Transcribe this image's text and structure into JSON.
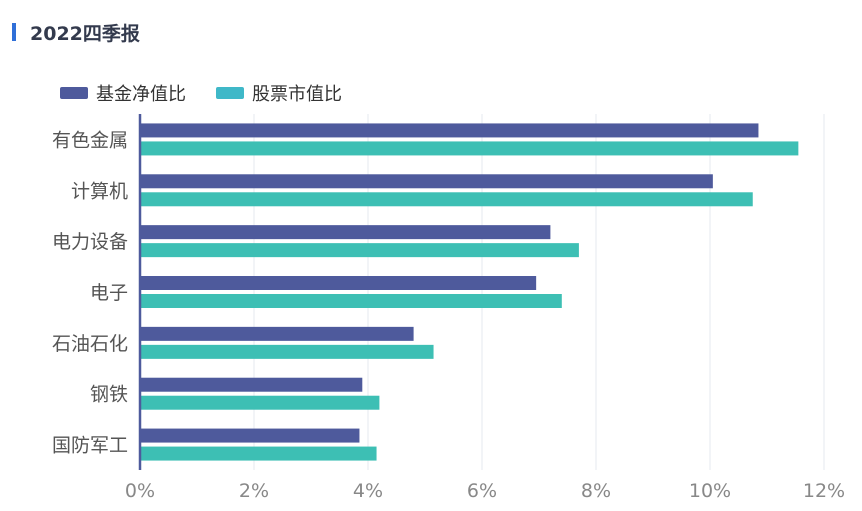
{
  "header": {
    "title": "2022四季报"
  },
  "colors": {
    "accent": "#2f6fd8",
    "fund": "#4e5a9c",
    "market": "#3dbfb4"
  },
  "chart_data": {
    "type": "bar",
    "orientation": "horizontal",
    "title": "2022四季报",
    "categories": [
      "有色金属",
      "计算机",
      "电力设备",
      "电子",
      "石油石化",
      "钢铁",
      "国防军工"
    ],
    "series": [
      {
        "name": "基金净值比",
        "values": [
          10.85,
          10.05,
          7.2,
          6.95,
          4.8,
          3.9,
          3.85
        ],
        "color": "#4e5a9c"
      },
      {
        "name": "股票市值比",
        "values": [
          11.55,
          10.75,
          7.7,
          7.4,
          5.15,
          4.2,
          4.15
        ],
        "color": "#3dbfb4"
      }
    ],
    "xlim": [
      0,
      12
    ],
    "xticks": [
      "0%",
      "2%",
      "4%",
      "6%",
      "8%",
      "10%",
      "12%"
    ],
    "grid": true,
    "legend_position": "top-left"
  }
}
